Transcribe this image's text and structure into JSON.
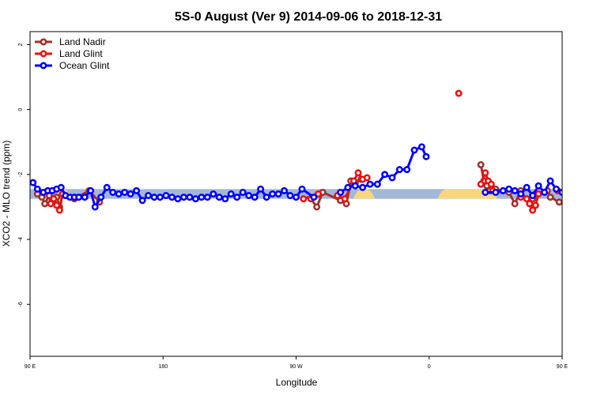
{
  "chart_data": {
    "type": "line",
    "title": "5S-0 August (Ver 9)   2014-09-06 to 2018-12-31",
    "xlabel": "Longitude",
    "ylabel": "XCO2 - MLO trend (ppm)",
    "xlim": [
      90,
      450
    ],
    "ylim": [
      -7.6,
      2.4
    ],
    "x_ticks": [
      {
        "value": 90,
        "label": "90 E"
      },
      {
        "value": 180,
        "label": "180"
      },
      {
        "value": 270,
        "label": "90 W"
      },
      {
        "value": 360,
        "label": "0"
      },
      {
        "value": 450,
        "label": "90 E"
      },
      {
        "value": 540,
        "label": "180"
      }
    ],
    "y_ticks": [
      {
        "value": 2,
        "label": "2"
      },
      {
        "value": 0,
        "label": "0"
      },
      {
        "value": -2,
        "label": "-2"
      },
      {
        "value": -4,
        "label": "-4"
      },
      {
        "value": -6,
        "label": "-6"
      }
    ],
    "legend_position": "top-left",
    "grid": false,
    "land_band": {
      "y_range": [
        -2.75,
        -2.45
      ],
      "ocean_color": "#a3b8d8",
      "land_color": "#f7d680",
      "land_segments": [
        [
          110,
          115
        ],
        [
          312,
          320
        ],
        [
          369,
          400
        ],
        [
          400,
          403
        ]
      ]
    },
    "series": [
      {
        "name": "Land Nadir",
        "color": "#a0302d",
        "points": [
          [
            95,
            -2.6
          ],
          [
            98,
            -2.7
          ],
          [
            100,
            -2.9
          ],
          [
            103,
            -2.65
          ],
          [
            105,
            -2.8
          ],
          [
            108,
            -2.7
          ],
          [
            110,
            -3.0
          ],
          [
            112,
            -2.6
          ],
          [
            120,
            -2.75
          ],
          [
            130,
            -2.5
          ],
          [
            137,
            -2.85
          ],
          [
            280,
            -2.75
          ],
          [
            284,
            -3.0
          ],
          [
            288,
            -2.55
          ],
          [
            300,
            -2.8
          ],
          [
            304,
            -2.9
          ],
          [
            307,
            -2.2
          ],
          [
            310,
            -2.25
          ],
          [
            314,
            -2.15
          ],
          [
            395,
            -1.7
          ],
          [
            397,
            -2.2
          ],
          [
            399,
            -2.35
          ],
          [
            401,
            -2.5
          ],
          [
            405,
            -2.45
          ],
          [
            414,
            -2.55
          ],
          [
            418,
            -2.9
          ],
          [
            422,
            -2.5
          ],
          [
            428,
            -2.9
          ],
          [
            430,
            -2.75
          ],
          [
            432,
            -2.6
          ],
          [
            440,
            -2.5
          ],
          [
            442,
            -2.7
          ],
          [
            448,
            -2.85
          ]
        ]
      },
      {
        "name": "Land Glint",
        "color": "#e8120d",
        "points": [
          [
            104,
            -2.9
          ],
          [
            106,
            -2.75
          ],
          [
            108,
            -2.95
          ],
          [
            110,
            -3.1
          ],
          [
            112,
            -2.6
          ],
          [
            275,
            -2.75
          ],
          [
            285,
            -2.6
          ],
          [
            298,
            -2.65
          ],
          [
            303,
            -2.75
          ],
          [
            309,
            -2.2
          ],
          [
            312,
            -1.95
          ],
          [
            315,
            -2.15
          ],
          [
            318,
            -2.1
          ],
          [
            380,
            0.5
          ],
          [
            395,
            -2.3
          ],
          [
            398,
            -1.95
          ],
          [
            400,
            -2.2
          ],
          [
            402,
            -2.3
          ],
          [
            403,
            -2.5
          ],
          [
            422,
            -2.7
          ],
          [
            426,
            -2.75
          ],
          [
            428,
            -2.9
          ],
          [
            430,
            -3.1
          ],
          [
            432,
            -2.95
          ],
          [
            434,
            -2.6
          ],
          [
            447,
            -2.5
          ]
        ]
      },
      {
        "name": "Ocean Glint",
        "color": "#0000ff",
        "points": [
          [
            92,
            -2.25
          ],
          [
            95,
            -2.45
          ],
          [
            99,
            -2.55
          ],
          [
            102,
            -2.5
          ],
          [
            105,
            -2.5
          ],
          [
            108,
            -2.45
          ],
          [
            111,
            -2.4
          ],
          [
            114,
            -2.65
          ],
          [
            117,
            -2.7
          ],
          [
            120,
            -2.7
          ],
          [
            123,
            -2.7
          ],
          [
            127,
            -2.7
          ],
          [
            131,
            -2.5
          ],
          [
            134,
            -3.0
          ],
          [
            138,
            -2.7
          ],
          [
            142,
            -2.4
          ],
          [
            146,
            -2.55
          ],
          [
            150,
            -2.6
          ],
          [
            154,
            -2.55
          ],
          [
            158,
            -2.6
          ],
          [
            162,
            -2.5
          ],
          [
            166,
            -2.8
          ],
          [
            170,
            -2.65
          ],
          [
            174,
            -2.7
          ],
          [
            178,
            -2.7
          ],
          [
            182,
            -2.65
          ],
          [
            186,
            -2.7
          ],
          [
            190,
            -2.75
          ],
          [
            194,
            -2.7
          ],
          [
            198,
            -2.7
          ],
          [
            202,
            -2.75
          ],
          [
            206,
            -2.7
          ],
          [
            210,
            -2.7
          ],
          [
            214,
            -2.6
          ],
          [
            218,
            -2.7
          ],
          [
            222,
            -2.75
          ],
          [
            226,
            -2.6
          ],
          [
            230,
            -2.7
          ],
          [
            234,
            -2.55
          ],
          [
            238,
            -2.65
          ],
          [
            242,
            -2.7
          ],
          [
            246,
            -2.45
          ],
          [
            250,
            -2.7
          ],
          [
            254,
            -2.6
          ],
          [
            258,
            -2.6
          ],
          [
            262,
            -2.5
          ],
          [
            266,
            -2.65
          ],
          [
            270,
            -2.7
          ],
          [
            274,
            -2.45
          ],
          [
            282,
            -2.7
          ],
          [
            300,
            -2.55
          ],
          [
            305,
            -2.4
          ],
          [
            310,
            -2.35
          ],
          [
            315,
            -2.4
          ],
          [
            320,
            -2.3
          ],
          [
            325,
            -2.3
          ],
          [
            330,
            -2.0
          ],
          [
            335,
            -2.1
          ],
          [
            340,
            -1.85
          ],
          [
            345,
            -1.85
          ],
          [
            350,
            -1.25
          ],
          [
            355,
            -1.15
          ],
          [
            358,
            -1.45
          ],
          [
            398,
            -2.55
          ],
          [
            405,
            -2.55
          ],
          [
            410,
            -2.5
          ],
          [
            414,
            -2.45
          ],
          [
            418,
            -2.5
          ],
          [
            422,
            -2.6
          ],
          [
            426,
            -2.4
          ],
          [
            430,
            -2.65
          ],
          [
            434,
            -2.35
          ],
          [
            438,
            -2.55
          ],
          [
            442,
            -2.2
          ],
          [
            446,
            -2.45
          ],
          [
            450,
            -2.55
          ]
        ]
      }
    ]
  }
}
